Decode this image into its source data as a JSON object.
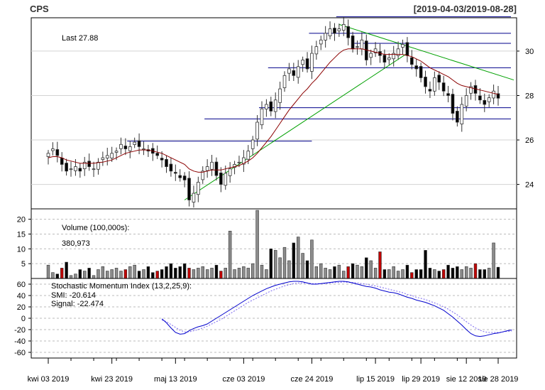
{
  "header": {
    "symbol": "CPS",
    "range": "[2019-04-03/2019-08-28]"
  },
  "price_panel": {
    "last_label": "Last 27.88"
  },
  "volume_panel": {
    "label": "Volume (100,000s):",
    "value": "380,973"
  },
  "smi_panel": {
    "label": "Stochastic Momentum Index (13,2,25,9):",
    "smi_label": "SMI: -20.614",
    "signal_label": "Signal: -22.474"
  },
  "colors": {
    "up": "#ffffff",
    "down": "#000000",
    "up_volume": "#8c8c8c",
    "down_volume": "#c00000",
    "ma": "#8b0000",
    "trend": "#00a000",
    "hline": "#00008b",
    "smi": "#0000cd",
    "signal": "#7b68ee"
  },
  "chart_data": [
    {
      "type": "candlestick",
      "title": "CPS",
      "subtitle": "[2019-04-03/2019-08-28]",
      "x_ticks": [
        "kwi 03 2019",
        "kwi 23 2019",
        "maj 13 2019",
        "cze 03 2019",
        "cze 24 2019",
        "lip 15 2019",
        "lip 29 2019",
        "sie 12 2019",
        "sie 28 2019"
      ],
      "y_ticks": [
        24,
        26,
        28,
        30
      ],
      "ylim": [
        22.9,
        31.5
      ],
      "last": 27.88,
      "close": [
        25.4,
        25.6,
        25.3,
        24.9,
        24.6,
        24.7,
        24.8,
        24.6,
        25.0,
        24.8,
        24.7,
        25.0,
        25.2,
        25.3,
        25.4,
        25.5,
        25.8,
        25.6,
        25.7,
        25.9,
        25.7,
        25.6,
        25.5,
        25.4,
        25.3,
        25.1,
        24.8,
        24.6,
        24.5,
        24.3,
        24.2,
        23.3,
        23.6,
        24.1,
        24.6,
        24.8,
        25.0,
        24.4,
        24.0,
        24.5,
        24.7,
        24.9,
        25.0,
        25.2,
        25.5,
        26.0,
        26.8,
        27.4,
        27.6,
        27.3,
        27.8,
        28.3,
        28.9,
        29.2,
        28.9,
        29.3,
        29.6,
        29.2,
        29.9,
        30.2,
        30.5,
        30.8,
        31.0,
        30.8,
        31.0,
        31.2,
        30.6,
        30.1,
        30.2,
        30.5,
        29.6,
        29.9,
        30.1,
        29.8,
        29.5,
        29.7,
        29.9,
        30.1,
        30.3,
        29.8,
        29.4,
        29.2,
        28.8,
        28.4,
        28.2,
        28.8,
        28.6,
        28.2,
        28.0,
        27.2,
        26.8,
        27.6,
        28.0,
        28.4,
        28.1,
        27.8,
        27.6,
        27.9,
        28.2,
        27.88
      ],
      "ma_values": [
        25.2,
        25.25,
        25.25,
        25.2,
        25.1,
        25.05,
        25.0,
        24.95,
        24.95,
        24.95,
        24.95,
        24.98,
        25.0,
        25.05,
        25.1,
        25.2,
        25.3,
        25.4,
        25.45,
        25.5,
        25.55,
        25.55,
        25.55,
        25.5,
        25.45,
        25.4,
        25.3,
        25.2,
        25.1,
        25.0,
        24.9,
        24.7,
        24.6,
        24.55,
        24.55,
        24.6,
        24.65,
        24.65,
        24.65,
        24.7,
        24.75,
        24.8,
        24.85,
        24.95,
        25.05,
        25.2,
        25.4,
        25.65,
        25.9,
        26.15,
        26.45,
        26.75,
        27.05,
        27.35,
        27.6,
        27.85,
        28.1,
        28.3,
        28.55,
        28.75,
        29.0,
        29.25,
        29.5,
        29.7,
        29.9,
        30.05,
        30.1,
        30.1,
        30.1,
        30.1,
        30.05,
        30.0,
        29.95,
        29.9,
        29.85,
        29.85,
        29.85,
        29.85,
        29.85,
        29.8,
        29.75,
        29.65,
        29.55,
        29.4,
        29.25,
        29.15,
        29.05,
        28.95,
        28.85,
        28.7,
        28.55,
        28.45,
        28.4,
        28.35,
        28.3,
        28.25,
        28.2,
        28.15,
        28.1,
        28.05
      ]
    },
    {
      "type": "bar",
      "title": "Volume (100,000s):",
      "y_ticks": [
        5,
        10,
        15,
        20
      ],
      "ylim": [
        0,
        23.5
      ],
      "last_value": "380,973",
      "values": [
        4.5,
        2,
        1.5,
        3.5,
        5.5,
        1,
        1.5,
        3,
        2.5,
        3.5,
        1,
        3,
        4,
        2.5,
        3,
        3.5,
        2.5,
        3,
        4,
        4.5,
        2.5,
        3,
        4,
        2,
        2.5,
        3,
        4,
        5,
        3.5,
        4,
        5,
        3.5,
        3,
        3.5,
        4,
        3,
        3.5,
        4.5,
        2.5,
        3.5,
        16,
        3,
        3.5,
        4,
        3.5,
        5,
        23,
        4.5,
        3,
        10,
        9.5,
        7,
        10.5,
        6,
        12,
        14,
        8.5,
        6,
        13,
        4,
        5,
        3.5,
        3,
        4,
        4.5,
        2.5,
        4,
        5,
        4.5,
        4,
        7,
        6,
        3.5,
        9,
        3,
        3,
        4,
        2.5,
        3,
        4.5,
        2,
        3,
        3,
        9.5,
        3.5,
        3,
        2.5,
        3,
        4.5,
        3.5,
        4,
        3,
        4,
        3.5,
        5,
        3,
        3,
        3.5,
        12,
        3.8
      ]
    },
    {
      "type": "line",
      "title": "Stochastic Momentum Index (13,2,25,9):",
      "y_ticks": [
        -60,
        -40,
        -20,
        0,
        20,
        40,
        60
      ],
      "ylim": [
        -70,
        70
      ],
      "series": [
        {
          "name": "SMI",
          "last": -20.614
        },
        {
          "name": "Signal",
          "last": -22.474
        }
      ],
      "start_index": 25,
      "smi": [
        -1,
        -8,
        -17,
        -25,
        -28,
        -27,
        -22,
        -18,
        -15,
        -13,
        -10,
        -5,
        0,
        5,
        10,
        15,
        20,
        25,
        30,
        35,
        40,
        44,
        48,
        52,
        55,
        58,
        60,
        62,
        64,
        65,
        65,
        64,
        62,
        60,
        60,
        61,
        62,
        63,
        64,
        65,
        65,
        64,
        62,
        60,
        58,
        56,
        55,
        53,
        50,
        48,
        46,
        45,
        43,
        40,
        37,
        35,
        32,
        30,
        28,
        25,
        22,
        18,
        14,
        8,
        2,
        -5,
        -12,
        -20,
        -27,
        -31,
        -32,
        -31,
        -29,
        -27,
        -26,
        -24,
        -22,
        -20.614
      ],
      "signal": [
        -3,
        -6,
        -11,
        -16,
        -21,
        -24,
        -24,
        -22,
        -20,
        -17,
        -14,
        -10,
        -6,
        -2,
        3,
        8,
        13,
        18,
        23,
        28,
        32,
        36,
        40,
        44,
        48,
        51,
        54,
        57,
        59,
        61,
        62,
        62,
        62,
        61,
        61,
        61,
        61,
        62,
        63,
        63,
        64,
        63,
        63,
        62,
        61,
        60,
        58,
        57,
        55,
        53,
        51,
        49,
        47,
        45,
        42,
        40,
        37,
        35,
        33,
        30,
        27,
        24,
        20,
        16,
        11,
        6,
        0,
        -6,
        -12,
        -17,
        -21,
        -24,
        -25,
        -25,
        -25,
        -24,
        -23,
        -22.474
      ]
    }
  ]
}
